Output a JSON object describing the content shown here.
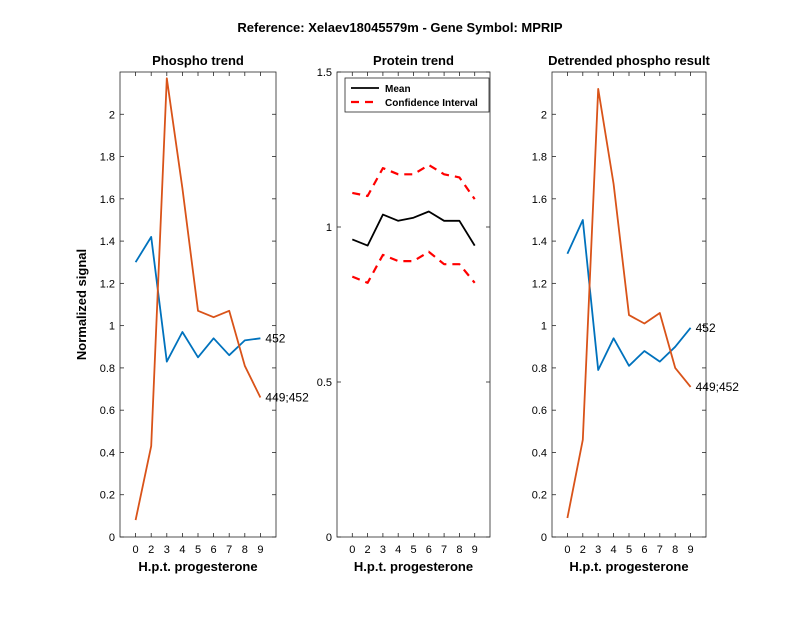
{
  "figure": {
    "suptitle": "Reference:  Xelaev18045579m - Gene Symbol:  MPRIP"
  },
  "chart_data": [
    {
      "type": "line",
      "title": "Phospho trend",
      "xlabel": "H.p.t. progesterone",
      "ylabel": "Normalized signal",
      "categories": [
        "0",
        "2",
        "3",
        "4",
        "5",
        "6",
        "7",
        "8",
        "9"
      ],
      "ylim": [
        0,
        2.2
      ],
      "yticks": [
        0,
        0.2,
        0.4,
        0.6,
        0.8,
        1,
        1.2,
        1.4,
        1.6,
        1.8,
        2
      ],
      "ytick_labels": [
        "0",
        "0.2",
        "0.4",
        "0.6",
        "0.8",
        "1",
        "1.2",
        "1.4",
        "1.6",
        "1.8",
        "2"
      ],
      "series": [
        {
          "name": "452",
          "color": "#0072BD",
          "values": [
            1.3,
            1.42,
            0.83,
            0.97,
            0.85,
            0.94,
            0.86,
            0.93,
            0.94
          ]
        },
        {
          "name": "449;452",
          "color": "#D95319",
          "values": [
            0.08,
            0.43,
            2.17,
            1.65,
            1.07,
            1.04,
            1.07,
            0.81,
            0.66
          ]
        }
      ]
    },
    {
      "type": "line",
      "title": "Protein trend",
      "xlabel": "H.p.t. progesterone",
      "ylabel": "",
      "categories": [
        "0",
        "2",
        "3",
        "4",
        "5",
        "6",
        "7",
        "8",
        "9"
      ],
      "ylim": [
        0,
        1.5
      ],
      "yticks": [
        0,
        0.5,
        1,
        1.5
      ],
      "ytick_labels": [
        "0",
        "0.5",
        "1",
        "1.5"
      ],
      "legend": {
        "position": "top-left",
        "entries": [
          "Mean",
          "Confidence Interval"
        ]
      },
      "series": [
        {
          "name": "Mean",
          "color": "#000000",
          "style": "solid",
          "values": [
            0.96,
            0.94,
            1.04,
            1.02,
            1.03,
            1.05,
            1.02,
            1.02,
            0.94
          ]
        },
        {
          "name": "Confidence Interval",
          "color": "#FF0000",
          "style": "dashed",
          "values": [
            1.11,
            1.1,
            1.19,
            1.17,
            1.17,
            1.2,
            1.17,
            1.16,
            1.09
          ]
        },
        {
          "name": "Confidence Interval",
          "color": "#FF0000",
          "style": "dashed",
          "values": [
            0.84,
            0.82,
            0.91,
            0.89,
            0.89,
            0.92,
            0.88,
            0.88,
            0.82
          ]
        }
      ]
    },
    {
      "type": "line",
      "title": "Detrended phospho result",
      "xlabel": "H.p.t. progesterone",
      "ylabel": "",
      "categories": [
        "0",
        "2",
        "3",
        "4",
        "5",
        "6",
        "7",
        "8",
        "9"
      ],
      "ylim": [
        0,
        2.2
      ],
      "yticks": [
        0,
        0.2,
        0.4,
        0.6,
        0.8,
        1,
        1.2,
        1.4,
        1.6,
        1.8,
        2
      ],
      "ytick_labels": [
        "0",
        "0.2",
        "0.4",
        "0.6",
        "0.8",
        "1",
        "1.2",
        "1.4",
        "1.6",
        "1.8",
        "2"
      ],
      "series": [
        {
          "name": "452",
          "color": "#0072BD",
          "values": [
            1.34,
            1.5,
            0.79,
            0.94,
            0.81,
            0.88,
            0.83,
            0.9,
            0.99
          ]
        },
        {
          "name": "449;452",
          "color": "#D95319",
          "values": [
            0.09,
            0.46,
            2.12,
            1.67,
            1.05,
            1.01,
            1.06,
            0.8,
            0.71
          ]
        }
      ]
    }
  ]
}
